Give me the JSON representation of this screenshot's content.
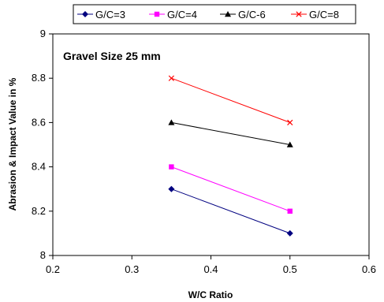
{
  "chart_data": {
    "type": "line",
    "annotation": "Gravel Size 25 mm",
    "xlabel": "W/C Ratio",
    "ylabel": "Abrasion & Impact Value in  %",
    "xlim": [
      0.2,
      0.6
    ],
    "ylim": [
      8,
      9
    ],
    "x_ticks": [
      "0.2",
      "0.3",
      "0.4",
      "0.5",
      "0.6"
    ],
    "y_ticks": [
      "8",
      "8.2",
      "8.4",
      "8.6",
      "8.8",
      "9"
    ],
    "grid": false,
    "legend_position": "top",
    "series": [
      {
        "name": "G/C=3",
        "color": "#000080",
        "marker": "diamond",
        "x": [
          0.35,
          0.5
        ],
        "y": [
          8.3,
          8.1
        ]
      },
      {
        "name": "G/C=4",
        "color": "#FF00FF",
        "marker": "square",
        "x": [
          0.35,
          0.5
        ],
        "y": [
          8.4,
          8.2
        ]
      },
      {
        "name": "G/C-6",
        "color": "#000000",
        "marker": "triangle",
        "x": [
          0.35,
          0.5
        ],
        "y": [
          8.6,
          8.5
        ]
      },
      {
        "name": "G/C=8",
        "color": "#FF0000",
        "marker": "x",
        "x": [
          0.35,
          0.5
        ],
        "y": [
          8.8,
          8.6
        ]
      }
    ]
  }
}
